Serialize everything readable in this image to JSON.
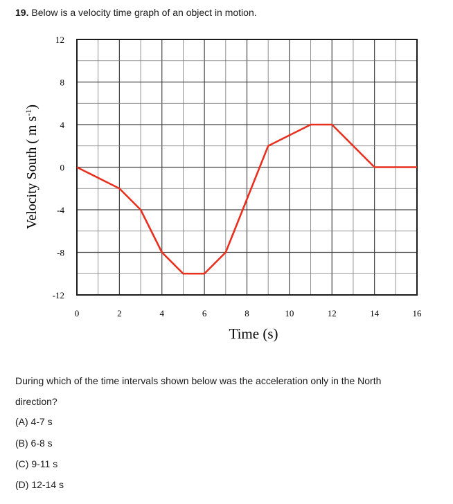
{
  "question": {
    "number": "19.",
    "text": "Below is a velocity time graph of an object in motion.",
    "prompt_line1": "During which of the time intervals shown below was the acceleration only in the North",
    "prompt_line2": "direction?",
    "options": [
      {
        "label": "(A) 4-7 s"
      },
      {
        "label": "(B) 6-8 s"
      },
      {
        "label": "(C) 9-11 s"
      },
      {
        "label": "(D) 12-14 s"
      }
    ]
  },
  "chart_data": {
    "type": "line",
    "xlabel": "Time (s)",
    "ylabel": "Velocity South ( m s",
    "ylabel_sup": "-1",
    "ylabel_close": ")",
    "xlim": [
      0,
      16
    ],
    "ylim": [
      -12,
      12
    ],
    "x_ticks": [
      "0",
      "2",
      "4",
      "6",
      "8",
      "10",
      "12",
      "14",
      "16"
    ],
    "y_ticks": [
      "12",
      "8",
      "4",
      "0",
      "-4",
      "-8",
      "-12"
    ],
    "grid": true,
    "line_color": "#e8301f",
    "series": [
      {
        "x": [
          0,
          2,
          3,
          4,
          5,
          6,
          7,
          8,
          9,
          11,
          12,
          14,
          16
        ],
        "y": [
          0,
          -2,
          -4,
          -8,
          -10,
          -10,
          -8,
          -3,
          2,
          4,
          4,
          0,
          0
        ]
      }
    ]
  }
}
